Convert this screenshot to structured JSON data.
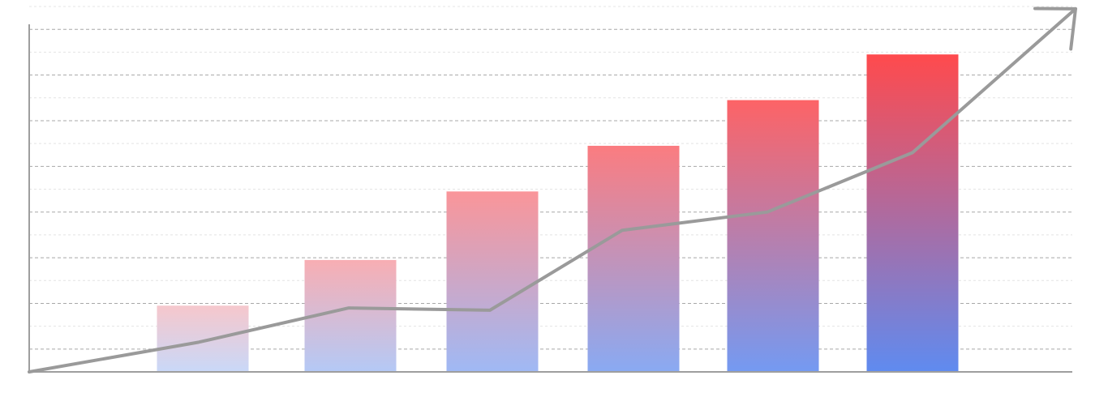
{
  "chart_data": {
    "type": "bar",
    "title": "",
    "xlabel": "",
    "ylabel": "",
    "categories": [
      "",
      "",
      "",
      "",
      "",
      ""
    ],
    "series": [
      {
        "type": "bar",
        "values": [
          2.9,
          4.9,
          7.9,
          9.9,
          11.9,
          13.9
        ]
      }
    ],
    "trend_line": {
      "values": [
        0,
        1.3,
        2.8,
        2.7,
        6.2,
        7.0,
        9.6,
        15.9
      ],
      "arrowhead": true
    },
    "ylim": [
      0,
      16
    ],
    "grid": true,
    "legend": "none",
    "colors": {
      "bar_top_light": "#f6c7cc",
      "bar_bottom_light": "#c9d8f8",
      "bar_top_strong": "#ff4a4d",
      "bar_bottom_strong": "#5f8bf0",
      "trend_line": "#9a9a9a",
      "axis": "#9e9e9e",
      "grid_major": "#a8a8a8",
      "grid_minor": "#e4e4e4"
    }
  }
}
